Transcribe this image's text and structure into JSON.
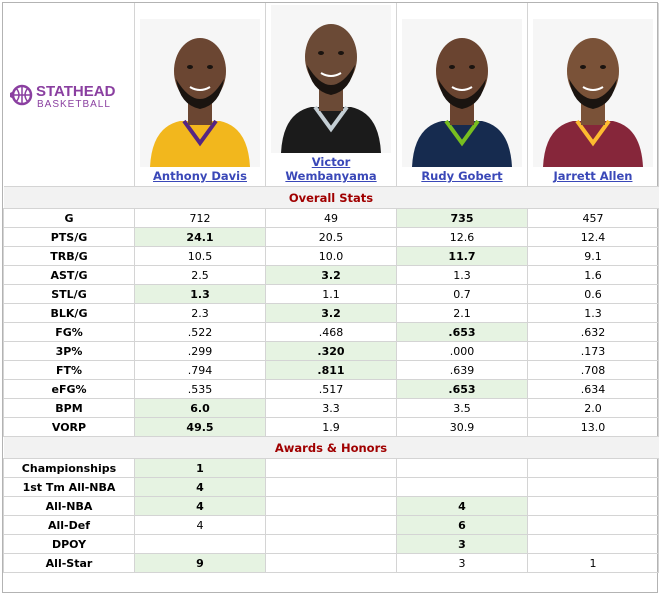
{
  "logo": {
    "name": "STATHEAD",
    "sub": "BASKETBALL",
    "accent": "#8a3fa0"
  },
  "players": [
    {
      "name": "Anthony Davis",
      "jersey_color": "#f2b71d",
      "trim": "#552583",
      "skin": "#6b4632"
    },
    {
      "name": "Victor Wembanyama",
      "jersey_color": "#1b1b1b",
      "trim": "#c4ced4",
      "skin": "#6b4a36"
    },
    {
      "name": "Rudy Gobert",
      "jersey_color": "#162b4f",
      "trim": "#78be20",
      "skin": "#6a4430"
    },
    {
      "name": "Jarrett Allen",
      "jersey_color": "#86263a",
      "trim": "#fdbb30",
      "skin": "#7a5238"
    }
  ],
  "sections": {
    "overall": "Overall Stats",
    "awards": "Awards & Honors"
  },
  "overall_rows": [
    {
      "label": "G",
      "values": [
        "712",
        "49",
        "735",
        "457"
      ],
      "hi": [
        2
      ]
    },
    {
      "label": "PTS/G",
      "values": [
        "24.1",
        "20.5",
        "12.6",
        "12.4"
      ],
      "hi": [
        0
      ]
    },
    {
      "label": "TRB/G",
      "values": [
        "10.5",
        "10.0",
        "11.7",
        "9.1"
      ],
      "hi": [
        2
      ]
    },
    {
      "label": "AST/G",
      "values": [
        "2.5",
        "3.2",
        "1.3",
        "1.6"
      ],
      "hi": [
        1
      ]
    },
    {
      "label": "STL/G",
      "values": [
        "1.3",
        "1.1",
        "0.7",
        "0.6"
      ],
      "hi": [
        0
      ]
    },
    {
      "label": "BLK/G",
      "values": [
        "2.3",
        "3.2",
        "2.1",
        "1.3"
      ],
      "hi": [
        1
      ]
    },
    {
      "label": "FG%",
      "values": [
        ".522",
        ".468",
        ".653",
        ".632"
      ],
      "hi": [
        2
      ]
    },
    {
      "label": "3P%",
      "values": [
        ".299",
        ".320",
        ".000",
        ".173"
      ],
      "hi": [
        1
      ]
    },
    {
      "label": "FT%",
      "values": [
        ".794",
        ".811",
        ".639",
        ".708"
      ],
      "hi": [
        1
      ]
    },
    {
      "label": "eFG%",
      "values": [
        ".535",
        ".517",
        ".653",
        ".634"
      ],
      "hi": [
        2
      ]
    },
    {
      "label": "BPM",
      "values": [
        "6.0",
        "3.3",
        "3.5",
        "2.0"
      ],
      "hi": [
        0
      ]
    },
    {
      "label": "VORP",
      "values": [
        "49.5",
        "1.9",
        "30.9",
        "13.0"
      ],
      "hi": [
        0
      ]
    }
  ],
  "award_rows": [
    {
      "label": "Championships",
      "values": [
        "1",
        "",
        "",
        ""
      ],
      "hi": [
        0
      ]
    },
    {
      "label": "1st Tm All-NBA",
      "values": [
        "4",
        "",
        "",
        ""
      ],
      "hi": [
        0
      ]
    },
    {
      "label": "All-NBA",
      "values": [
        "4",
        "",
        "4",
        ""
      ],
      "hi": [
        0,
        2
      ]
    },
    {
      "label": "All-Def",
      "values": [
        "4",
        "",
        "6",
        ""
      ],
      "hi": [
        2
      ]
    },
    {
      "label": "DPOY",
      "values": [
        "",
        "",
        "3",
        ""
      ],
      "hi": [
        2
      ]
    },
    {
      "label": "All-Star",
      "values": [
        "9",
        "",
        "3",
        "1"
      ],
      "hi": [
        0
      ]
    }
  ]
}
